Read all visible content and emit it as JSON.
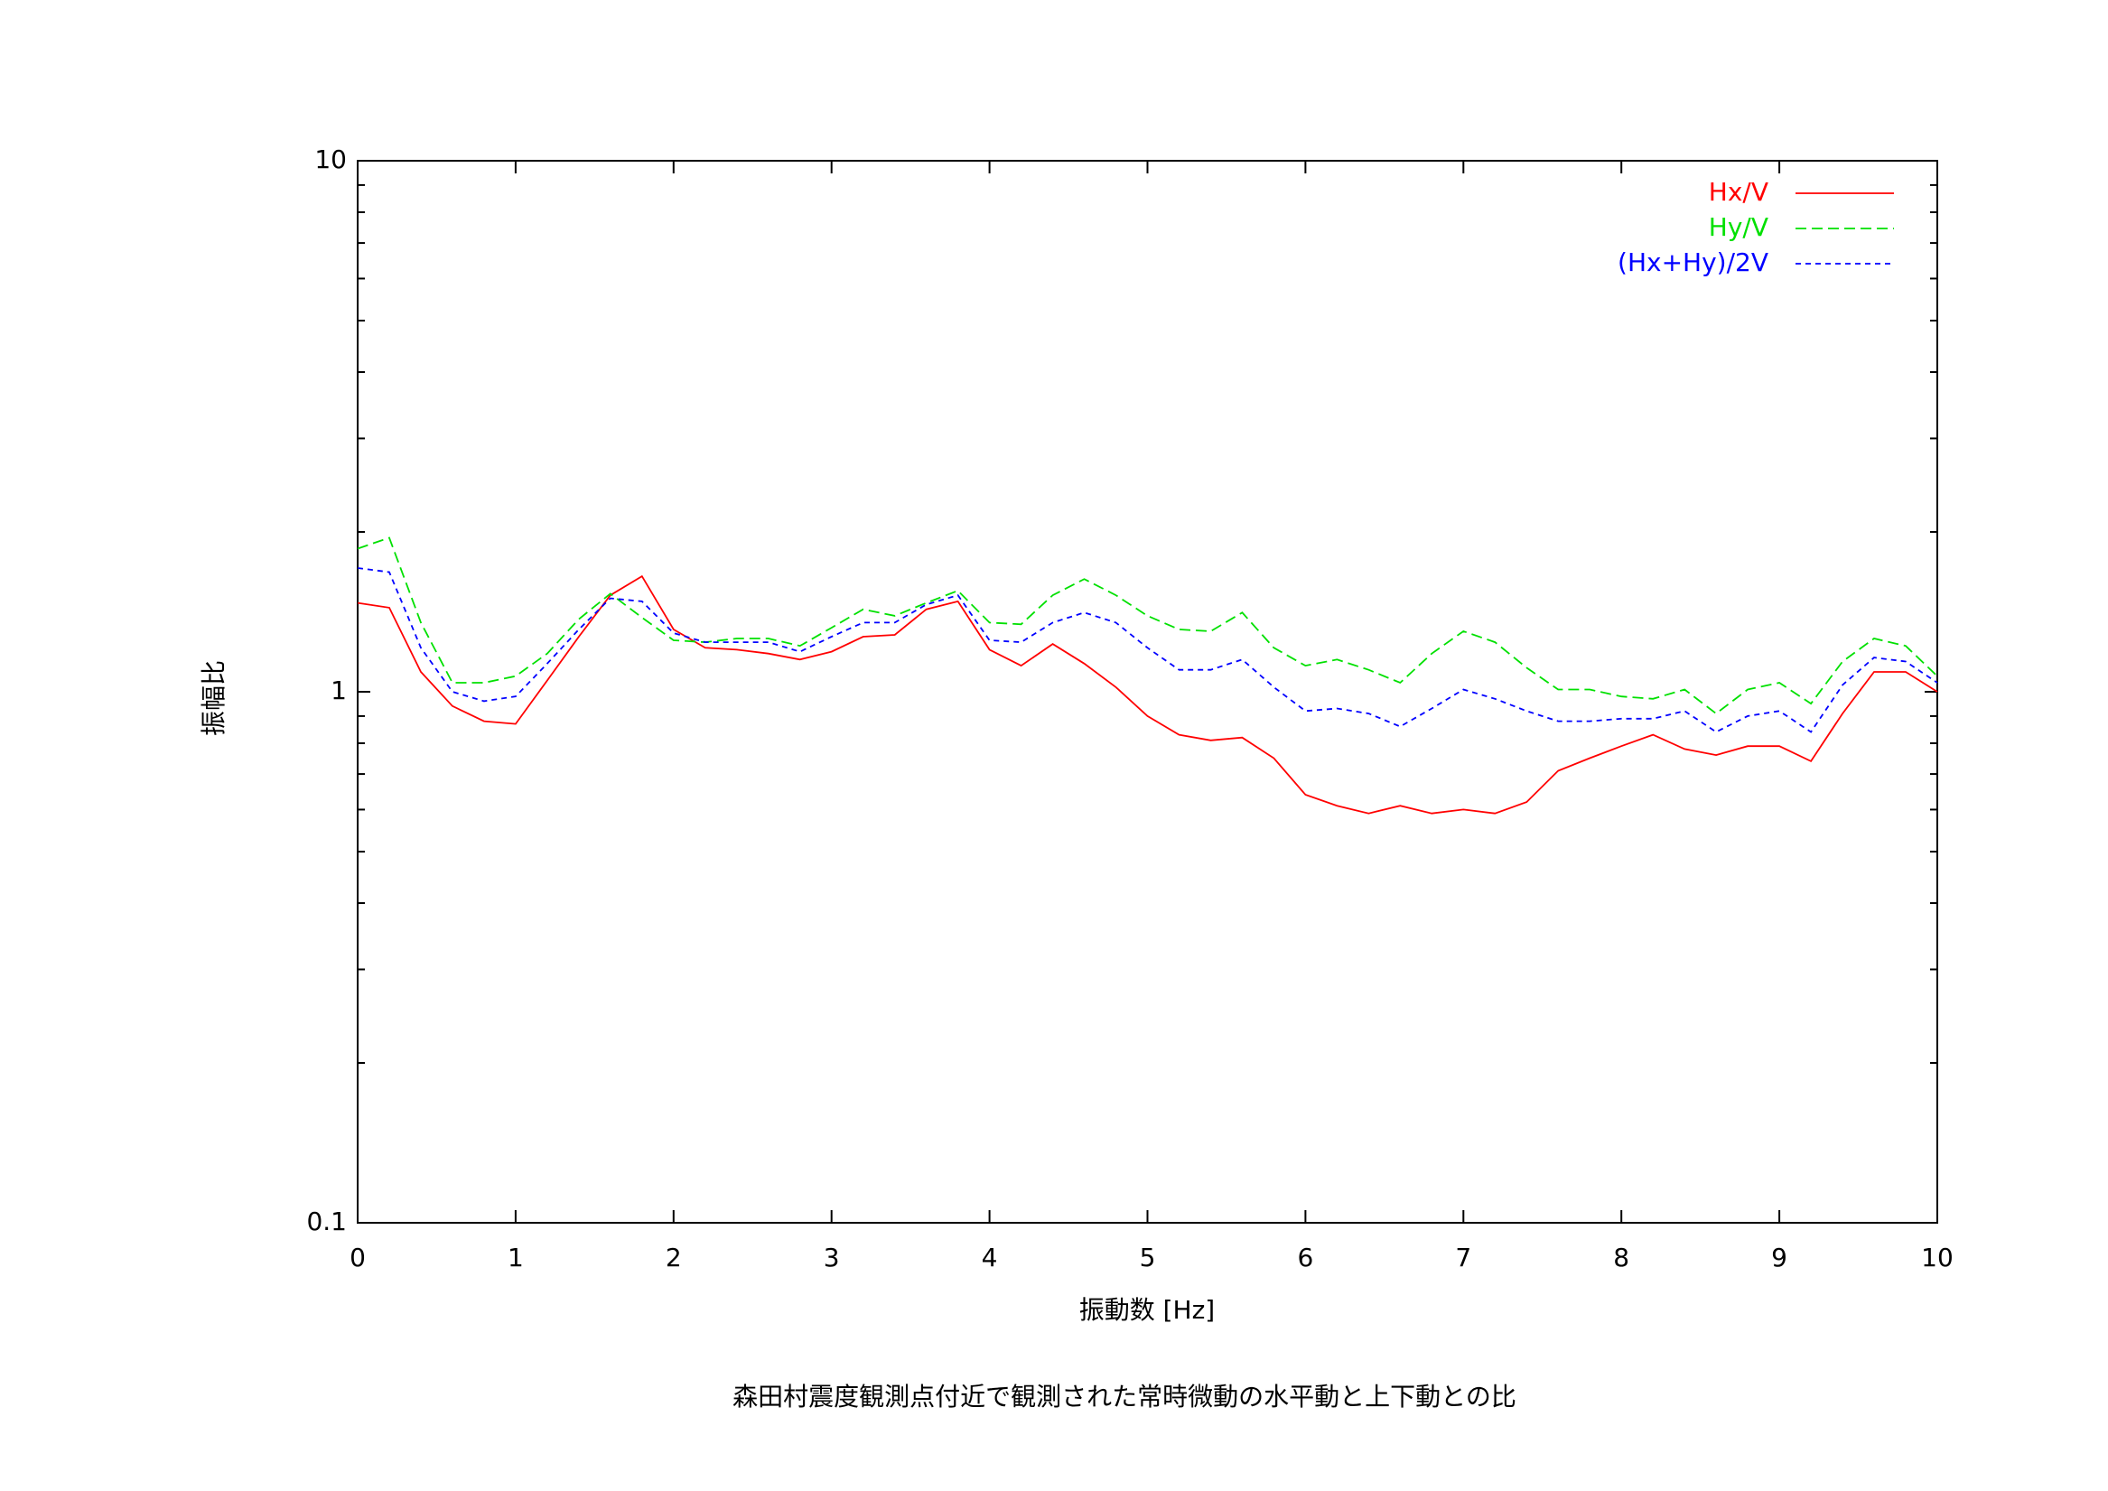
{
  "chart_data": {
    "type": "line",
    "title": "森田村震度観測点付近で観測された常時微動の水平動と上下動との比",
    "xlabel": "振動数 [Hz]",
    "ylabel": "振幅比",
    "log_y": true,
    "legend": "upper right",
    "xlim": [
      0,
      10
    ],
    "xticks": [
      0,
      1,
      2,
      3,
      4,
      5,
      6,
      7,
      8,
      9,
      10
    ],
    "ylim": [
      0.1,
      10
    ],
    "yticks": [
      0.1,
      1,
      10
    ],
    "x": [
      0,
      0.2,
      0.4,
      0.6,
      0.8,
      1,
      1.2,
      1.4,
      1.6,
      1.8,
      2,
      2.2,
      2.4,
      2.6,
      2.8,
      3,
      3.2,
      3.4,
      3.6,
      3.8,
      4,
      4.2,
      4.4,
      4.6,
      4.8,
      5,
      5.2,
      5.4,
      5.6,
      5.8,
      6,
      6.2,
      6.4,
      6.6,
      6.8,
      7,
      7.2,
      7.4,
      7.6,
      7.8,
      8,
      8.2,
      8.4,
      8.6,
      8.8,
      9,
      9.2,
      9.4,
      9.6,
      9.8,
      10
    ],
    "series": [
      {
        "name": "Hx/V",
        "color": "#ff0000",
        "dash": "solid",
        "values": [
          1.47,
          1.44,
          1.09,
          0.94,
          0.88,
          0.87,
          1.05,
          1.27,
          1.52,
          1.65,
          1.31,
          1.21,
          1.2,
          1.18,
          1.15,
          1.19,
          1.27,
          1.28,
          1.43,
          1.48,
          1.2,
          1.12,
          1.23,
          1.13,
          1.02,
          0.9,
          0.83,
          0.81,
          0.82,
          0.75,
          0.64,
          0.61,
          0.59,
          0.61,
          0.59,
          0.6,
          0.59,
          0.62,
          0.71,
          0.75,
          0.79,
          0.83,
          0.78,
          0.76,
          0.79,
          0.79,
          0.74,
          0.91,
          1.09,
          1.09,
          1.0
        ]
      },
      {
        "name": "Hy/V",
        "color": "#00e000",
        "dash": "dashed",
        "values": [
          1.86,
          1.95,
          1.35,
          1.04,
          1.04,
          1.07,
          1.18,
          1.37,
          1.53,
          1.38,
          1.25,
          1.24,
          1.26,
          1.26,
          1.22,
          1.32,
          1.43,
          1.39,
          1.47,
          1.55,
          1.35,
          1.34,
          1.52,
          1.63,
          1.52,
          1.39,
          1.31,
          1.3,
          1.41,
          1.21,
          1.12,
          1.15,
          1.1,
          1.04,
          1.18,
          1.3,
          1.24,
          1.11,
          1.01,
          1.01,
          0.98,
          0.97,
          1.01,
          0.91,
          1.01,
          1.04,
          0.95,
          1.14,
          1.26,
          1.22,
          1.07
        ]
      },
      {
        "name": "(Hx+Hy)/2V",
        "color": "#0000ff",
        "dash": "dotted",
        "values": [
          1.71,
          1.68,
          1.21,
          1.0,
          0.96,
          0.98,
          1.13,
          1.31,
          1.5,
          1.48,
          1.29,
          1.24,
          1.24,
          1.24,
          1.19,
          1.27,
          1.35,
          1.35,
          1.46,
          1.52,
          1.25,
          1.24,
          1.35,
          1.41,
          1.35,
          1.21,
          1.1,
          1.1,
          1.15,
          1.02,
          0.92,
          0.93,
          0.91,
          0.86,
          0.93,
          1.01,
          0.97,
          0.92,
          0.88,
          0.88,
          0.89,
          0.89,
          0.92,
          0.84,
          0.9,
          0.92,
          0.84,
          1.03,
          1.16,
          1.14,
          1.04
        ]
      }
    ]
  }
}
